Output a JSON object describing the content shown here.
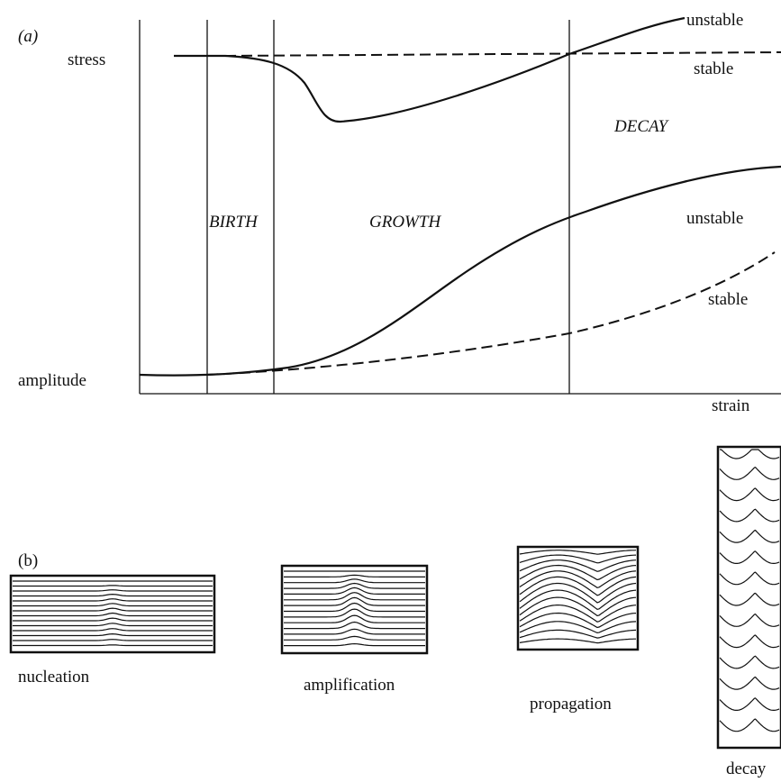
{
  "panel_a": {
    "label": "(a)",
    "stress_label": "stress",
    "amplitude_label": "amplitude",
    "x_label": "strain",
    "phases": [
      "BIRTH",
      "GROWTH",
      "DECAY"
    ],
    "stress_curves": [
      "unstable",
      "stable"
    ],
    "amplitude_curves": [
      "unstable",
      "stable"
    ]
  },
  "panel_b": {
    "label": "(b)",
    "stages": [
      "nucleation",
      "amplification",
      "propagation",
      "decay"
    ]
  }
}
